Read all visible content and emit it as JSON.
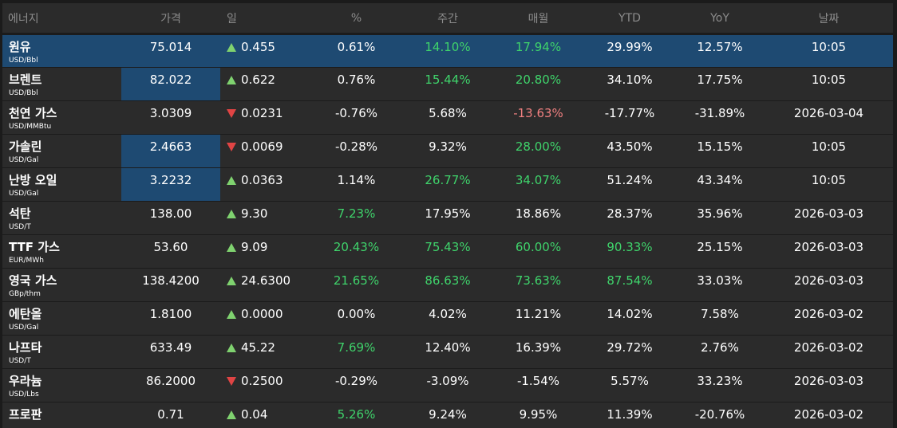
{
  "columns": {
    "name": "에너지",
    "price": "가격",
    "day": "일",
    "pct": "%",
    "weekly": "주간",
    "monthly": "매월",
    "ytd": "YTD",
    "yoy": "YoY",
    "date": "날짜"
  },
  "colors": {
    "selected_row": "#1e4a72",
    "up": "#7fd26f",
    "down": "#e04444",
    "green_text": "#3fd36b",
    "red_text": "#f08080"
  },
  "rows": [
    {
      "name": "원유",
      "unit": "USD/Bbl",
      "price": "75.014",
      "dir": "up",
      "day": "0.455",
      "pct": "0.61%",
      "pct_c": "w",
      "weekly": "14.10%",
      "weekly_c": "g",
      "monthly": "17.94%",
      "monthly_c": "g",
      "ytd": "29.99%",
      "ytd_c": "w",
      "yoy": "12.57%",
      "yoy_c": "w",
      "date": "10:05",
      "selected": true,
      "price_hl": false
    },
    {
      "name": "브렌트",
      "unit": "USD/Bbl",
      "price": "82.022",
      "dir": "up",
      "day": "0.622",
      "pct": "0.76%",
      "pct_c": "w",
      "weekly": "15.44%",
      "weekly_c": "g",
      "monthly": "20.80%",
      "monthly_c": "g",
      "ytd": "34.10%",
      "ytd_c": "w",
      "yoy": "17.75%",
      "yoy_c": "w",
      "date": "10:05",
      "selected": false,
      "price_hl": true
    },
    {
      "name": "천연 가스",
      "unit": "USD/MMBtu",
      "price": "3.0309",
      "dir": "down",
      "day": "0.0231",
      "pct": "-0.76%",
      "pct_c": "w",
      "weekly": "5.68%",
      "weekly_c": "w",
      "monthly": "-13.63%",
      "monthly_c": "r",
      "ytd": "-17.77%",
      "ytd_c": "w",
      "yoy": "-31.89%",
      "yoy_c": "w",
      "date": "2026-03-04",
      "selected": false,
      "price_hl": false
    },
    {
      "name": "가솔린",
      "unit": "USD/Gal",
      "price": "2.4663",
      "dir": "down",
      "day": "0.0069",
      "pct": "-0.28%",
      "pct_c": "w",
      "weekly": "9.32%",
      "weekly_c": "w",
      "monthly": "28.00%",
      "monthly_c": "g",
      "ytd": "43.50%",
      "ytd_c": "w",
      "yoy": "15.15%",
      "yoy_c": "w",
      "date": "10:05",
      "selected": false,
      "price_hl": true
    },
    {
      "name": "난방 오일",
      "unit": "USD/Gal",
      "price": "3.2232",
      "dir": "up",
      "day": "0.0363",
      "pct": "1.14%",
      "pct_c": "w",
      "weekly": "26.77%",
      "weekly_c": "g",
      "monthly": "34.07%",
      "monthly_c": "g",
      "ytd": "51.24%",
      "ytd_c": "w",
      "yoy": "43.34%",
      "yoy_c": "w",
      "date": "10:05",
      "selected": false,
      "price_hl": true
    },
    {
      "name": "석탄",
      "unit": "USD/T",
      "price": "138.00",
      "dir": "up",
      "day": "9.30",
      "pct": "7.23%",
      "pct_c": "g",
      "weekly": "17.95%",
      "weekly_c": "w",
      "monthly": "18.86%",
      "monthly_c": "w",
      "ytd": "28.37%",
      "ytd_c": "w",
      "yoy": "35.96%",
      "yoy_c": "w",
      "date": "2026-03-03",
      "selected": false,
      "price_hl": false
    },
    {
      "name": "TTF 가스",
      "unit": "EUR/MWh",
      "price": "53.60",
      "dir": "up",
      "day": "9.09",
      "pct": "20.43%",
      "pct_c": "g",
      "weekly": "75.43%",
      "weekly_c": "g",
      "monthly": "60.00%",
      "monthly_c": "g",
      "ytd": "90.33%",
      "ytd_c": "g",
      "yoy": "25.15%",
      "yoy_c": "w",
      "date": "2026-03-03",
      "selected": false,
      "price_hl": false
    },
    {
      "name": "영국 가스",
      "unit": "GBp/thm",
      "price": "138.4200",
      "dir": "up",
      "day": "24.6300",
      "pct": "21.65%",
      "pct_c": "g",
      "weekly": "86.63%",
      "weekly_c": "g",
      "monthly": "73.63%",
      "monthly_c": "g",
      "ytd": "87.54%",
      "ytd_c": "g",
      "yoy": "33.03%",
      "yoy_c": "w",
      "date": "2026-03-03",
      "selected": false,
      "price_hl": false
    },
    {
      "name": "에탄올",
      "unit": "USD/Gal",
      "price": "1.8100",
      "dir": "up",
      "day": "0.0000",
      "pct": "0.00%",
      "pct_c": "w",
      "weekly": "4.02%",
      "weekly_c": "w",
      "monthly": "11.21%",
      "monthly_c": "w",
      "ytd": "14.02%",
      "ytd_c": "w",
      "yoy": "7.58%",
      "yoy_c": "w",
      "date": "2026-03-02",
      "selected": false,
      "price_hl": false
    },
    {
      "name": "나프타",
      "unit": "USD/T",
      "price": "633.49",
      "dir": "up",
      "day": "45.22",
      "pct": "7.69%",
      "pct_c": "g",
      "weekly": "12.40%",
      "weekly_c": "w",
      "monthly": "16.39%",
      "monthly_c": "w",
      "ytd": "29.72%",
      "ytd_c": "w",
      "yoy": "2.76%",
      "yoy_c": "w",
      "date": "2026-03-02",
      "selected": false,
      "price_hl": false
    },
    {
      "name": "우라늄",
      "unit": "USD/Lbs",
      "price": "86.2000",
      "dir": "down",
      "day": "0.2500",
      "pct": "-0.29%",
      "pct_c": "w",
      "weekly": "-3.09%",
      "weekly_c": "w",
      "monthly": "-1.54%",
      "monthly_c": "w",
      "ytd": "5.57%",
      "ytd_c": "w",
      "yoy": "33.23%",
      "yoy_c": "w",
      "date": "2026-03-03",
      "selected": false,
      "price_hl": false
    },
    {
      "name": "프로판",
      "unit": "",
      "price": "0.71",
      "dir": "up",
      "day": "0.04",
      "pct": "5.26%",
      "pct_c": "g",
      "weekly": "9.24%",
      "weekly_c": "w",
      "monthly": "9.95%",
      "monthly_c": "w",
      "ytd": "11.39%",
      "ytd_c": "w",
      "yoy": "-20.76%",
      "yoy_c": "w",
      "date": "2026-03-02",
      "selected": false,
      "price_hl": false
    }
  ]
}
